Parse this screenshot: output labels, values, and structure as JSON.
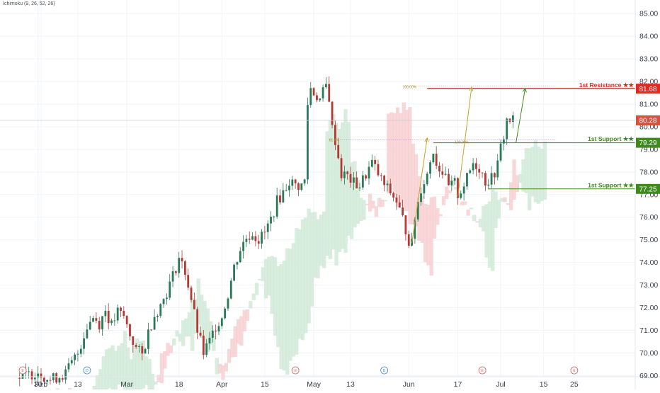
{
  "indicator_label": "Ichimoku (9, 26, 52, 26)",
  "colors": {
    "up": "#2a7a5a",
    "down": "#b23a35",
    "resistance": "#e8271f",
    "support": "#3e8a1c",
    "price_badge": "#d4533f",
    "fib_arrow": "#c8a02a",
    "green_arrow": "#3e8a1c",
    "cloud_green": "#cfe9d6",
    "cloud_red": "#f6cdcf",
    "grid": "#f0f3fa",
    "axis_text": "#3a3e4a",
    "event_red": "#e05a5a",
    "event_blue": "#3a8ad8"
  },
  "chart_data": {
    "type": "candlestick",
    "yaxis_ticks": [
      "69.00",
      "70.00",
      "71.00",
      "72.00",
      "73.00",
      "74.00",
      "75.00",
      "76.00",
      "77.00",
      "78.00",
      "79.00",
      "80.00",
      "81.00",
      "82.00",
      "83.00",
      "84.00",
      "85.00"
    ],
    "xaxis_ticks": [
      {
        "label": "30",
        "day": -1
      },
      {
        "label": "Feb",
        "day": 0
      },
      {
        "label": "13",
        "day": 12
      },
      {
        "label": "Mar",
        "day": 28
      },
      {
        "label": "18",
        "day": 45
      },
      {
        "label": "Apr",
        "day": 59
      },
      {
        "label": "15",
        "day": 73
      },
      {
        "label": "May",
        "day": 89
      },
      {
        "label": "13",
        "day": 101
      },
      {
        "label": "Jun",
        "day": 120
      },
      {
        "label": "17",
        "day": 136
      },
      {
        "label": "Jul",
        "day": 150
      },
      {
        "label": "15",
        "day": 164
      },
      {
        "label": "25",
        "day": 174
      }
    ],
    "ylim": [
      68.95,
      85.6
    ],
    "current_price": "80.28",
    "levels": [
      {
        "name": "1st Resistance ★★",
        "price": 81.68,
        "value_label": "81.68",
        "kind": "resistance"
      },
      {
        "name": "1st Support ★★",
        "price": 79.29,
        "value_label": "79.29",
        "kind": "support"
      },
      {
        "name": "1st Support ★★",
        "price": 77.25,
        "value_label": "77.25",
        "kind": "support"
      }
    ],
    "fib_labels": [
      "100.00%",
      "61.8%",
      "100.00%"
    ],
    "events": [
      {
        "label": "E",
        "day": -6,
        "kind": "earnings"
      },
      {
        "label": "D",
        "day": 15,
        "kind": "dividend"
      },
      {
        "label": "E",
        "day": 83,
        "kind": "earnings"
      },
      {
        "label": "D",
        "day": 112,
        "kind": "dividend"
      },
      {
        "label": "E",
        "day": 144,
        "kind": "earnings"
      },
      {
        "label": "E",
        "day": 174,
        "kind": "earnings"
      }
    ],
    "price_path": [
      [
        -7,
        68.9
      ],
      [
        -1,
        69.2
      ],
      [
        3,
        68.8
      ],
      [
        8,
        69.1
      ],
      [
        12,
        70.0
      ],
      [
        15,
        71.2
      ],
      [
        17,
        71.6
      ],
      [
        19,
        71.3
      ],
      [
        21,
        71.9
      ],
      [
        23,
        71.2
      ],
      [
        25,
        71.8
      ],
      [
        27,
        71.6
      ],
      [
        29,
        70.8
      ],
      [
        31,
        70.2
      ],
      [
        33,
        69.9
      ],
      [
        35,
        70.9
      ],
      [
        37,
        71.7
      ],
      [
        39,
        72.1
      ],
      [
        41,
        72.7
      ],
      [
        43,
        73.4
      ],
      [
        45,
        74.2
      ],
      [
        47,
        73.6
      ],
      [
        49,
        72.4
      ],
      [
        51,
        71.0
      ],
      [
        53,
        70.0
      ],
      [
        55,
        70.5
      ],
      [
        57,
        71.2
      ],
      [
        59,
        71.6
      ],
      [
        61,
        72.6
      ],
      [
        63,
        73.8
      ],
      [
        65,
        74.6
      ],
      [
        67,
        75.1
      ],
      [
        69,
        75.3
      ],
      [
        71,
        75.0
      ],
      [
        73,
        75.3
      ],
      [
        75,
        75.9
      ],
      [
        77,
        76.7
      ],
      [
        79,
        77.1
      ],
      [
        81,
        77.6
      ],
      [
        83,
        77.4
      ],
      [
        85,
        77.4
      ],
      [
        86,
        77.6
      ],
      [
        87,
        81.0
      ],
      [
        88,
        81.7
      ],
      [
        89,
        81.5
      ],
      [
        91,
        81.2
      ],
      [
        93,
        81.8
      ],
      [
        94,
        81.3
      ],
      [
        95,
        79.9
      ],
      [
        96,
        79.4
      ],
      [
        98,
        77.9
      ],
      [
        100,
        77.8
      ],
      [
        102,
        77.5
      ],
      [
        104,
        77.4
      ],
      [
        106,
        77.9
      ],
      [
        108,
        78.4
      ],
      [
        110,
        77.9
      ],
      [
        112,
        77.4
      ],
      [
        114,
        77.1
      ],
      [
        116,
        76.7
      ],
      [
        118,
        75.9
      ],
      [
        120,
        75.0
      ],
      [
        121,
        74.8
      ],
      [
        122,
        76.0
      ],
      [
        124,
        77.3
      ],
      [
        126,
        77.9
      ],
      [
        127,
        78.5
      ],
      [
        128,
        79.0
      ],
      [
        129,
        78.4
      ],
      [
        131,
        78.0
      ],
      [
        133,
        77.3
      ],
      [
        135,
        77.5
      ],
      [
        136,
        77.0
      ],
      [
        137,
        77.2
      ],
      [
        139,
        77.7
      ],
      [
        141,
        78.4
      ],
      [
        143,
        78.2
      ],
      [
        145,
        77.6
      ],
      [
        147,
        77.7
      ],
      [
        149,
        78.3
      ],
      [
        150,
        79.1
      ],
      [
        151,
        79.6
      ],
      [
        152,
        80.3
      ],
      [
        153,
        80.3
      ],
      [
        154,
        80.3
      ]
    ]
  }
}
